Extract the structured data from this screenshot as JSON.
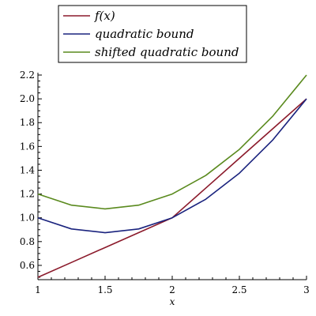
{
  "chart_data": {
    "type": "line",
    "title": "",
    "xlabel": "x",
    "ylabel": "",
    "xlim": [
      1,
      3
    ],
    "ylim": [
      0.48,
      2.22
    ],
    "xticks": [
      1,
      1.5,
      2,
      2.5,
      3
    ],
    "xtick_labels": [
      "1",
      "1.5",
      "2",
      "2.5",
      "3"
    ],
    "yticks": [
      0.6,
      0.8,
      1.0,
      1.2,
      1.4,
      1.6,
      1.8,
      2.0,
      2.2
    ],
    "ytick_labels": [
      "0.6",
      "0.8",
      "1.0",
      "1.2",
      "1.4",
      "1.6",
      "1.8",
      "2.0",
      "2.2"
    ],
    "legend_position": "top",
    "grid": false,
    "series": [
      {
        "name": "f(x)",
        "color": "#8b1a2b",
        "x": [
          1,
          1.25,
          1.5,
          1.75,
          2,
          2.25,
          2.5,
          2.75,
          3
        ],
        "y": [
          0.5,
          0.625,
          0.75,
          0.875,
          1.0,
          1.25,
          1.5,
          1.75,
          2.0
        ]
      },
      {
        "name": "quadratic bound",
        "color": "#1a237e",
        "x": [
          1,
          1.25,
          1.5,
          1.75,
          2,
          2.25,
          2.5,
          2.75,
          3
        ],
        "y": [
          1.0,
          0.90625,
          0.875,
          0.90625,
          1.0,
          1.15625,
          1.375,
          1.65625,
          2.0
        ]
      },
      {
        "name": "shifted quadratic bound",
        "color": "#5a8a1e",
        "x": [
          1,
          1.25,
          1.5,
          1.75,
          2,
          2.25,
          2.5,
          2.75,
          3
        ],
        "y": [
          1.2,
          1.10625,
          1.075,
          1.10625,
          1.2,
          1.35625,
          1.575,
          1.85625,
          2.2
        ]
      }
    ]
  }
}
